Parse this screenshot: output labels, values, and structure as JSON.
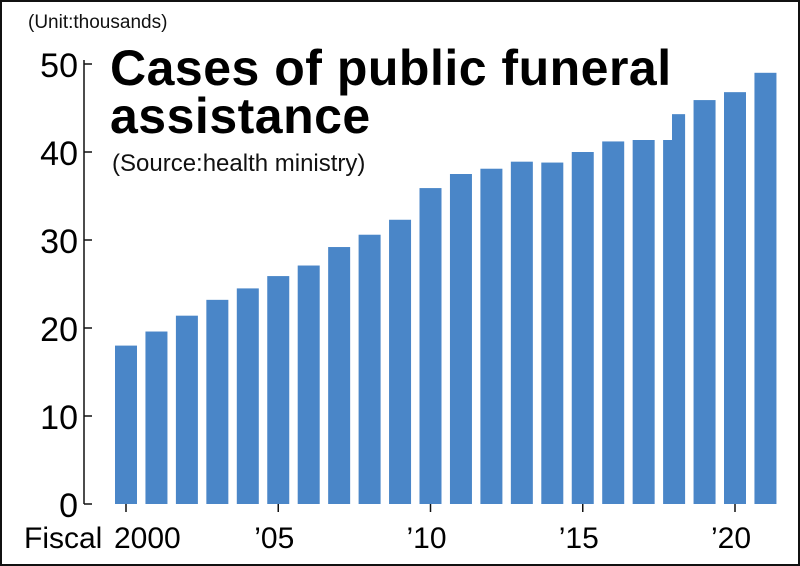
{
  "header": {
    "unit": "(Unit:thousands)",
    "title_line1": "Cases of public funeral",
    "title_line2": "assistance",
    "source": "(Source:health ministry)"
  },
  "colors": {
    "bar": "#4a86c8",
    "axis": "#111111",
    "text": "#000000"
  },
  "chart_data": {
    "type": "bar",
    "title": "Cases of public funeral assistance",
    "ylabel": "(Unit:thousands)",
    "xlabel": "",
    "ylim": [
      0,
      50
    ],
    "yticks": [
      0,
      10,
      20,
      30,
      40,
      50
    ],
    "x_prefix_label": "Fiscal",
    "categories": [
      2000,
      2001,
      2002,
      2003,
      2004,
      2005,
      2006,
      2007,
      2008,
      2009,
      2010,
      2011,
      2012,
      2013,
      2014,
      2015,
      2016,
      2017,
      2018,
      2019,
      2020,
      2021
    ],
    "values": [
      18.0,
      19.6,
      21.4,
      23.2,
      24.5,
      25.9,
      27.1,
      29.2,
      30.6,
      32.3,
      35.9,
      37.5,
      38.1,
      38.9,
      38.8,
      40.0,
      41.2,
      43.1,
      44.3,
      45.9,
      46.8,
      49.0
    ],
    "tick_labels": [
      {
        "year": 2000,
        "label": "2000"
      },
      {
        "year": 2005,
        "label": "’05"
      },
      {
        "year": 2010,
        "label": "’10"
      },
      {
        "year": 2015,
        "label": "’15"
      },
      {
        "year": 2020,
        "label": "’20"
      }
    ],
    "grid": false,
    "legend": "none"
  }
}
